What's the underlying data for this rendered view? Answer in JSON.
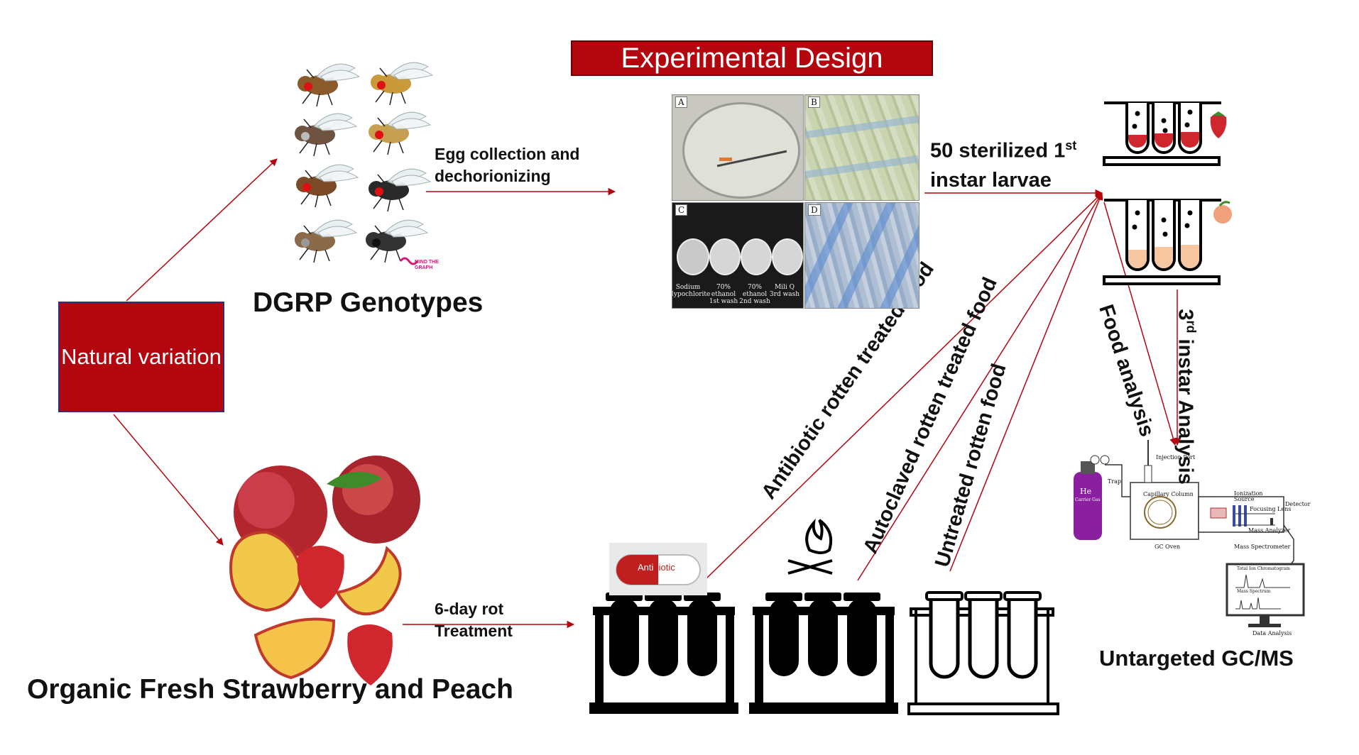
{
  "title": "Experimental Design",
  "natural_variation": "Natural variation",
  "dgrp_label": "DGRP Genotypes",
  "fruit_label": "Organic Fresh Strawberry and Peach",
  "egg_step": {
    "line1": "Egg collection and",
    "line2": "dechorionizing"
  },
  "larvae_step": {
    "line1_prefix": "50 sterilized 1",
    "line1_sup": "st",
    "line2": "instar larvae"
  },
  "rot_step": {
    "line1": "6-day rot",
    "line2": "Treatment"
  },
  "treatments": {
    "antibiotic": "Antibiotic rotten treated food",
    "autoclaved": "Autoclaved rotten treated food",
    "untreated": "Untreated rotten food"
  },
  "analysis": {
    "food": "Food analysis",
    "instar_prefix": "3",
    "instar_sup": "rd",
    "instar_suffix": " instar Analysis"
  },
  "gcms_label": "Untargeted GC/MS",
  "capsule_text": {
    "left": "Anti",
    "right": "biotic"
  },
  "logo_text": {
    "line1": "MIND THE",
    "line2": "GRAPH"
  },
  "photo_panels": [
    {
      "tag": "A"
    },
    {
      "tag": "B"
    },
    {
      "tag": "C",
      "captions": [
        {
          "l1": "Sodium",
          "l2": "Hypochlorite"
        },
        {
          "l1": "70% ethanol",
          "l2": "1st wash"
        },
        {
          "l1": "70% ethanol",
          "l2": "2nd wash"
        },
        {
          "l1": "Mili Q",
          "l2": "3rd wash"
        }
      ]
    },
    {
      "tag": "D"
    }
  ],
  "gcms_parts": {
    "he": "He",
    "carrier": "Carrier Gas",
    "injection": "Injection Port",
    "trap": "Trap",
    "column": "Capillary Column",
    "oven": "GC Oven",
    "ion_source": "Ionization Source",
    "focusing": "Focusing Lens",
    "analyzer": "Mass Analyzer",
    "detector": "Detector",
    "spectrometer": "Mass Spectrometer",
    "tic": "Total Ion Chromatogram",
    "mass_spectrum": "Mass Spectrum",
    "data": "Data Analysis"
  },
  "colors": {
    "accent": "#b3060f",
    "arrow": "#b3060f",
    "strawberry": "#d0262e",
    "peach": "#f5c6a0"
  }
}
